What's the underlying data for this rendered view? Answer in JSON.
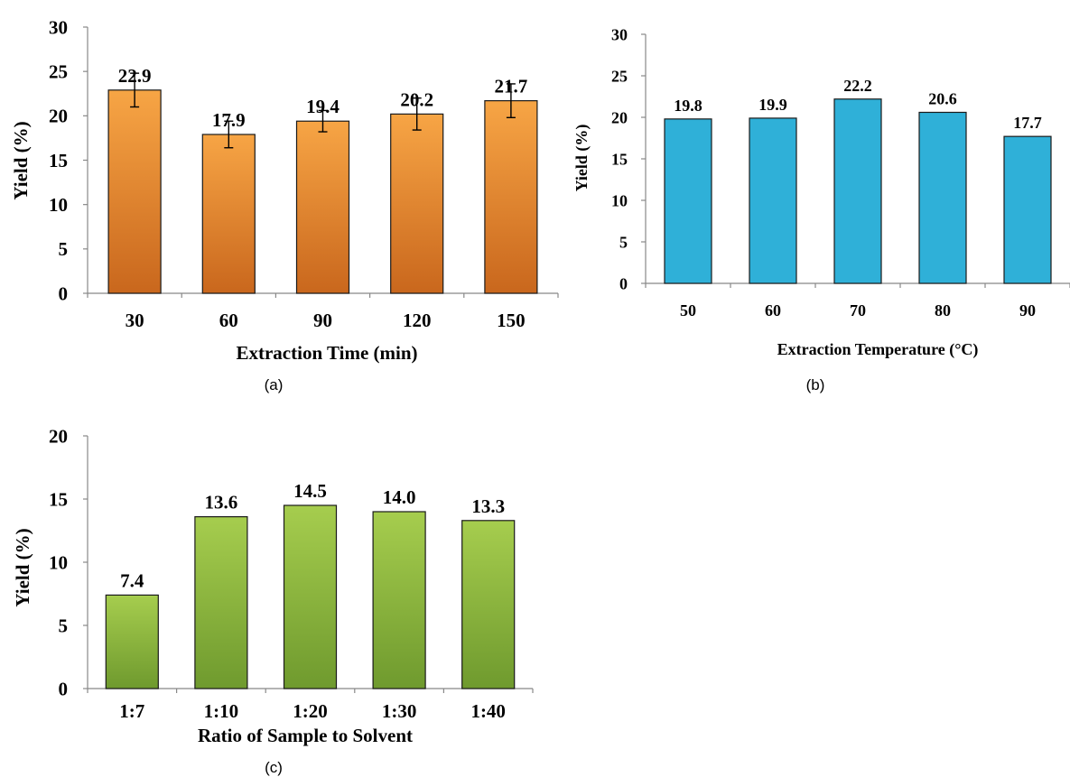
{
  "chart_data": [
    {
      "type": "bar",
      "panel": "(a)",
      "categories": [
        "30",
        "60",
        "90",
        "120",
        "150"
      ],
      "values": [
        22.9,
        17.9,
        19.4,
        20.2,
        21.7
      ],
      "value_labels": [
        "22.9",
        "17.9",
        "19.4",
        "20.2",
        "21.7"
      ],
      "errors": [
        1.9,
        1.5,
        1.2,
        1.8,
        1.9
      ],
      "xlabel": "Extraction Time (min)",
      "ylabel": "Yield (%)",
      "ylim": [
        0,
        30
      ],
      "yticks": [
        "0",
        "5",
        "10",
        "15",
        "20",
        "25",
        "30"
      ],
      "grid": false,
      "color_top": "#f7a545",
      "color_bottom": "#c9671d"
    },
    {
      "type": "bar",
      "panel": "(b)",
      "categories": [
        "50",
        "60",
        "70",
        "80",
        "90"
      ],
      "values": [
        19.8,
        19.9,
        22.2,
        20.6,
        17.7
      ],
      "value_labels": [
        "19.8",
        "19.9",
        "22.2",
        "20.6",
        "17.7"
      ],
      "xlabel": "Extraction Temperature (°C)",
      "ylabel": "Yield (%)",
      "ylim": [
        0,
        30
      ],
      "yticks": [
        "0",
        "5",
        "10",
        "15",
        "20",
        "25",
        "30"
      ],
      "grid": false,
      "color_top": "#2fb0d8",
      "color_bottom": "#2fb0d8"
    },
    {
      "type": "bar",
      "panel": "(c)",
      "categories": [
        "1:7",
        "1:10",
        "1:20",
        "1:30",
        "1:40"
      ],
      "values": [
        7.4,
        13.6,
        14.5,
        14.0,
        13.3
      ],
      "value_labels": [
        "7.4",
        "13.6",
        "14.5",
        "14.0",
        "13.3"
      ],
      "xlabel": "Ratio of Sample to Solvent",
      "ylabel": "Yield (%)",
      "ylim": [
        0,
        20
      ],
      "yticks": [
        "0",
        "5",
        "10",
        "15",
        "20"
      ],
      "grid": false,
      "color_top": "#a6cd4e",
      "color_bottom": "#6f9a2e"
    }
  ]
}
